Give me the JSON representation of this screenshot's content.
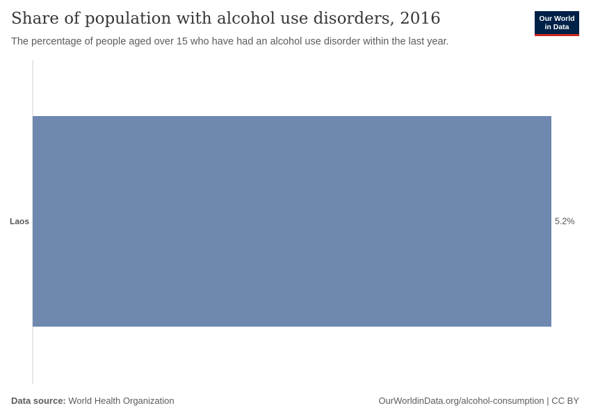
{
  "chart_data": {
    "type": "bar",
    "orientation": "horizontal",
    "title": "Share of population with alcohol use disorders, 2016",
    "subtitle": "The percentage of people aged over 15 who have had an alcohol use disorder within the last year.",
    "categories": [
      "Laos"
    ],
    "values": [
      5.2
    ],
    "value_labels": [
      "5.2%"
    ],
    "xlim": [
      0,
      5.2
    ],
    "bar_color": "#6f88b0",
    "axis_color": "#cccccc"
  },
  "logo": {
    "line1": "Our World",
    "line2": "in Data"
  },
  "footer": {
    "source_label": "Data source:",
    "source_value": "World Health Organization",
    "credit": "OurWorldinData.org/alcohol-consumption | CC BY"
  }
}
